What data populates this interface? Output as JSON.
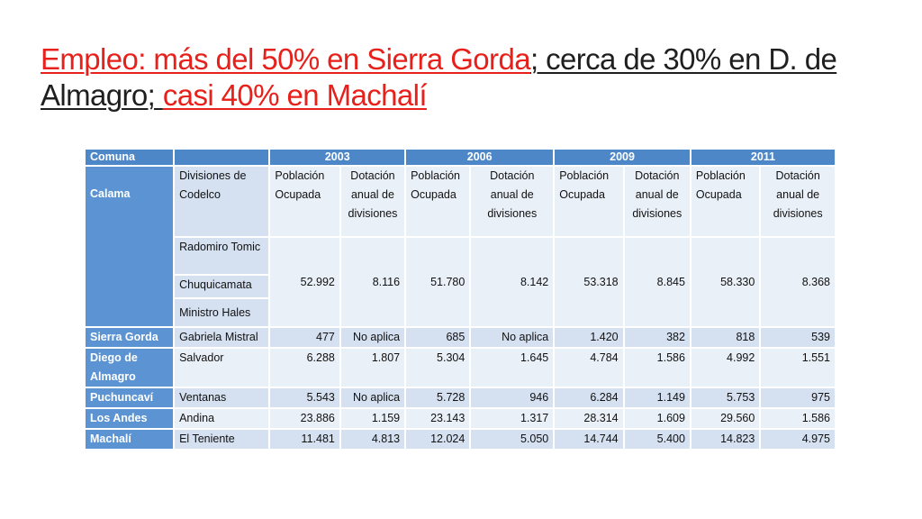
{
  "title": {
    "part1": "Empleo: más del 50% en Sierra Gorda",
    "part2": "; cerca de 30% en D. de Almagro; ",
    "part3": "casi 40% en Machalí"
  },
  "table": {
    "headers": [
      "Comuna",
      "",
      "2003",
      "2006",
      "2009",
      "2011"
    ],
    "subheaders": {
      "division": "Divisiones de Codelco",
      "poblacion": "Población Ocupada",
      "dotacion": "Dotación anual de divisiones"
    },
    "calama": {
      "label": "Calama",
      "divisions": [
        "Radomiro Tomic",
        "Chuquicamata",
        "Ministro Hales"
      ],
      "values": [
        "52.992",
        "8.116",
        "51.780",
        "8.142",
        "53.318",
        "8.845",
        "58.330",
        "8.368"
      ]
    },
    "rows": [
      {
        "comuna": "Sierra Gorda",
        "division": "Gabriela Mistral",
        "values": [
          "477",
          "No aplica",
          "685",
          "No aplica",
          "1.420",
          "382",
          "818",
          "539"
        ]
      },
      {
        "comuna": "Diego de Almagro",
        "division": "Salvador",
        "values": [
          "6.288",
          "1.807",
          "5.304",
          "1.645",
          "4.784",
          "1.586",
          "4.992",
          "1.551"
        ]
      },
      {
        "comuna": "Puchuncaví",
        "division": "Ventanas",
        "values": [
          "5.543",
          "No aplica",
          "5.728",
          "946",
          "6.284",
          "1.149",
          "5.753",
          "975"
        ]
      },
      {
        "comuna": "Los Andes",
        "division": "Andina",
        "values": [
          "23.886",
          "1.159",
          "23.143",
          "1.317",
          "28.314",
          "1.609",
          "29.560",
          "1.586"
        ]
      },
      {
        "comuna": "Machalí",
        "division": "El Teniente",
        "values": [
          "11.481",
          "4.813",
          "12.024",
          "5.050",
          "14.744",
          "5.400",
          "14.823",
          "4.975"
        ]
      }
    ]
  }
}
